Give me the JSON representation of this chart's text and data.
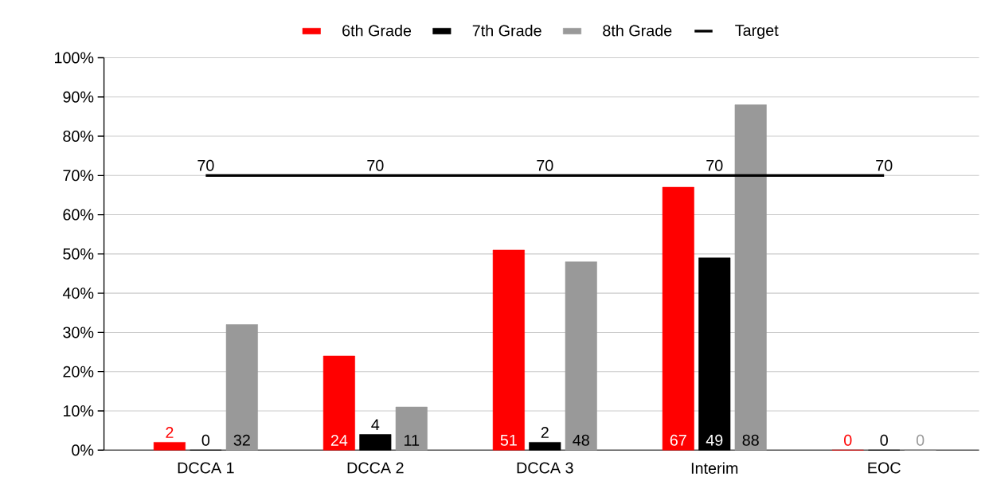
{
  "chart_data": {
    "type": "bar",
    "categories": [
      "DCCA 1",
      "DCCA 2",
      "DCCA 3",
      "Interim",
      "EOC"
    ],
    "series": [
      {
        "name": "6th Grade",
        "color": "#ff0000",
        "values": [
          2,
          24,
          51,
          67,
          0
        ]
      },
      {
        "name": "7th Grade",
        "color": "#000000",
        "values": [
          0,
          4,
          2,
          49,
          0
        ]
      },
      {
        "name": "8th Grade",
        "color": "#999999",
        "values": [
          32,
          11,
          48,
          88,
          0
        ]
      },
      {
        "name": "Target",
        "type": "line",
        "color": "#000000",
        "values": [
          70,
          70,
          70,
          70,
          70
        ]
      }
    ],
    "ylim": [
      0,
      100
    ],
    "yticks": [
      {
        "value": 0,
        "label": "0%"
      },
      {
        "value": 10,
        "label": "10%"
      },
      {
        "value": 20,
        "label": "20%"
      },
      {
        "value": 30,
        "label": "30%"
      },
      {
        "value": 40,
        "label": "40%"
      },
      {
        "value": 50,
        "label": "50%"
      },
      {
        "value": 60,
        "label": "60%"
      },
      {
        "value": 70,
        "label": "70%"
      },
      {
        "value": 80,
        "label": "80%"
      },
      {
        "value": 90,
        "label": "90%"
      },
      {
        "value": 100,
        "label": "100%"
      }
    ],
    "grid": "y",
    "legend": "top",
    "data_labels": true
  }
}
